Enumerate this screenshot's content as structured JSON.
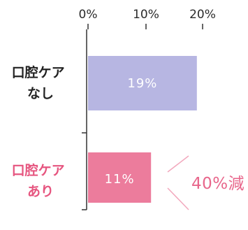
{
  "chart_data": {
    "type": "bar",
    "orientation": "horizontal",
    "x_ticks": [
      "0%",
      "10%",
      "20%"
    ],
    "xlim": [
      0,
      20
    ],
    "grid": false,
    "categories": [
      "口腔ケア\nなし",
      "口腔ケア\nあり"
    ],
    "values": [
      19,
      11
    ],
    "value_labels": [
      "19%",
      "11%"
    ],
    "annotation": "40%減"
  },
  "colors": {
    "bar_none": "#b7b6e2",
    "bar_care": "#ec7c9c",
    "label_none": "#222222",
    "label_care": "#e6557f",
    "axis": "#333333",
    "annotation_line": "#f2a8bd"
  }
}
